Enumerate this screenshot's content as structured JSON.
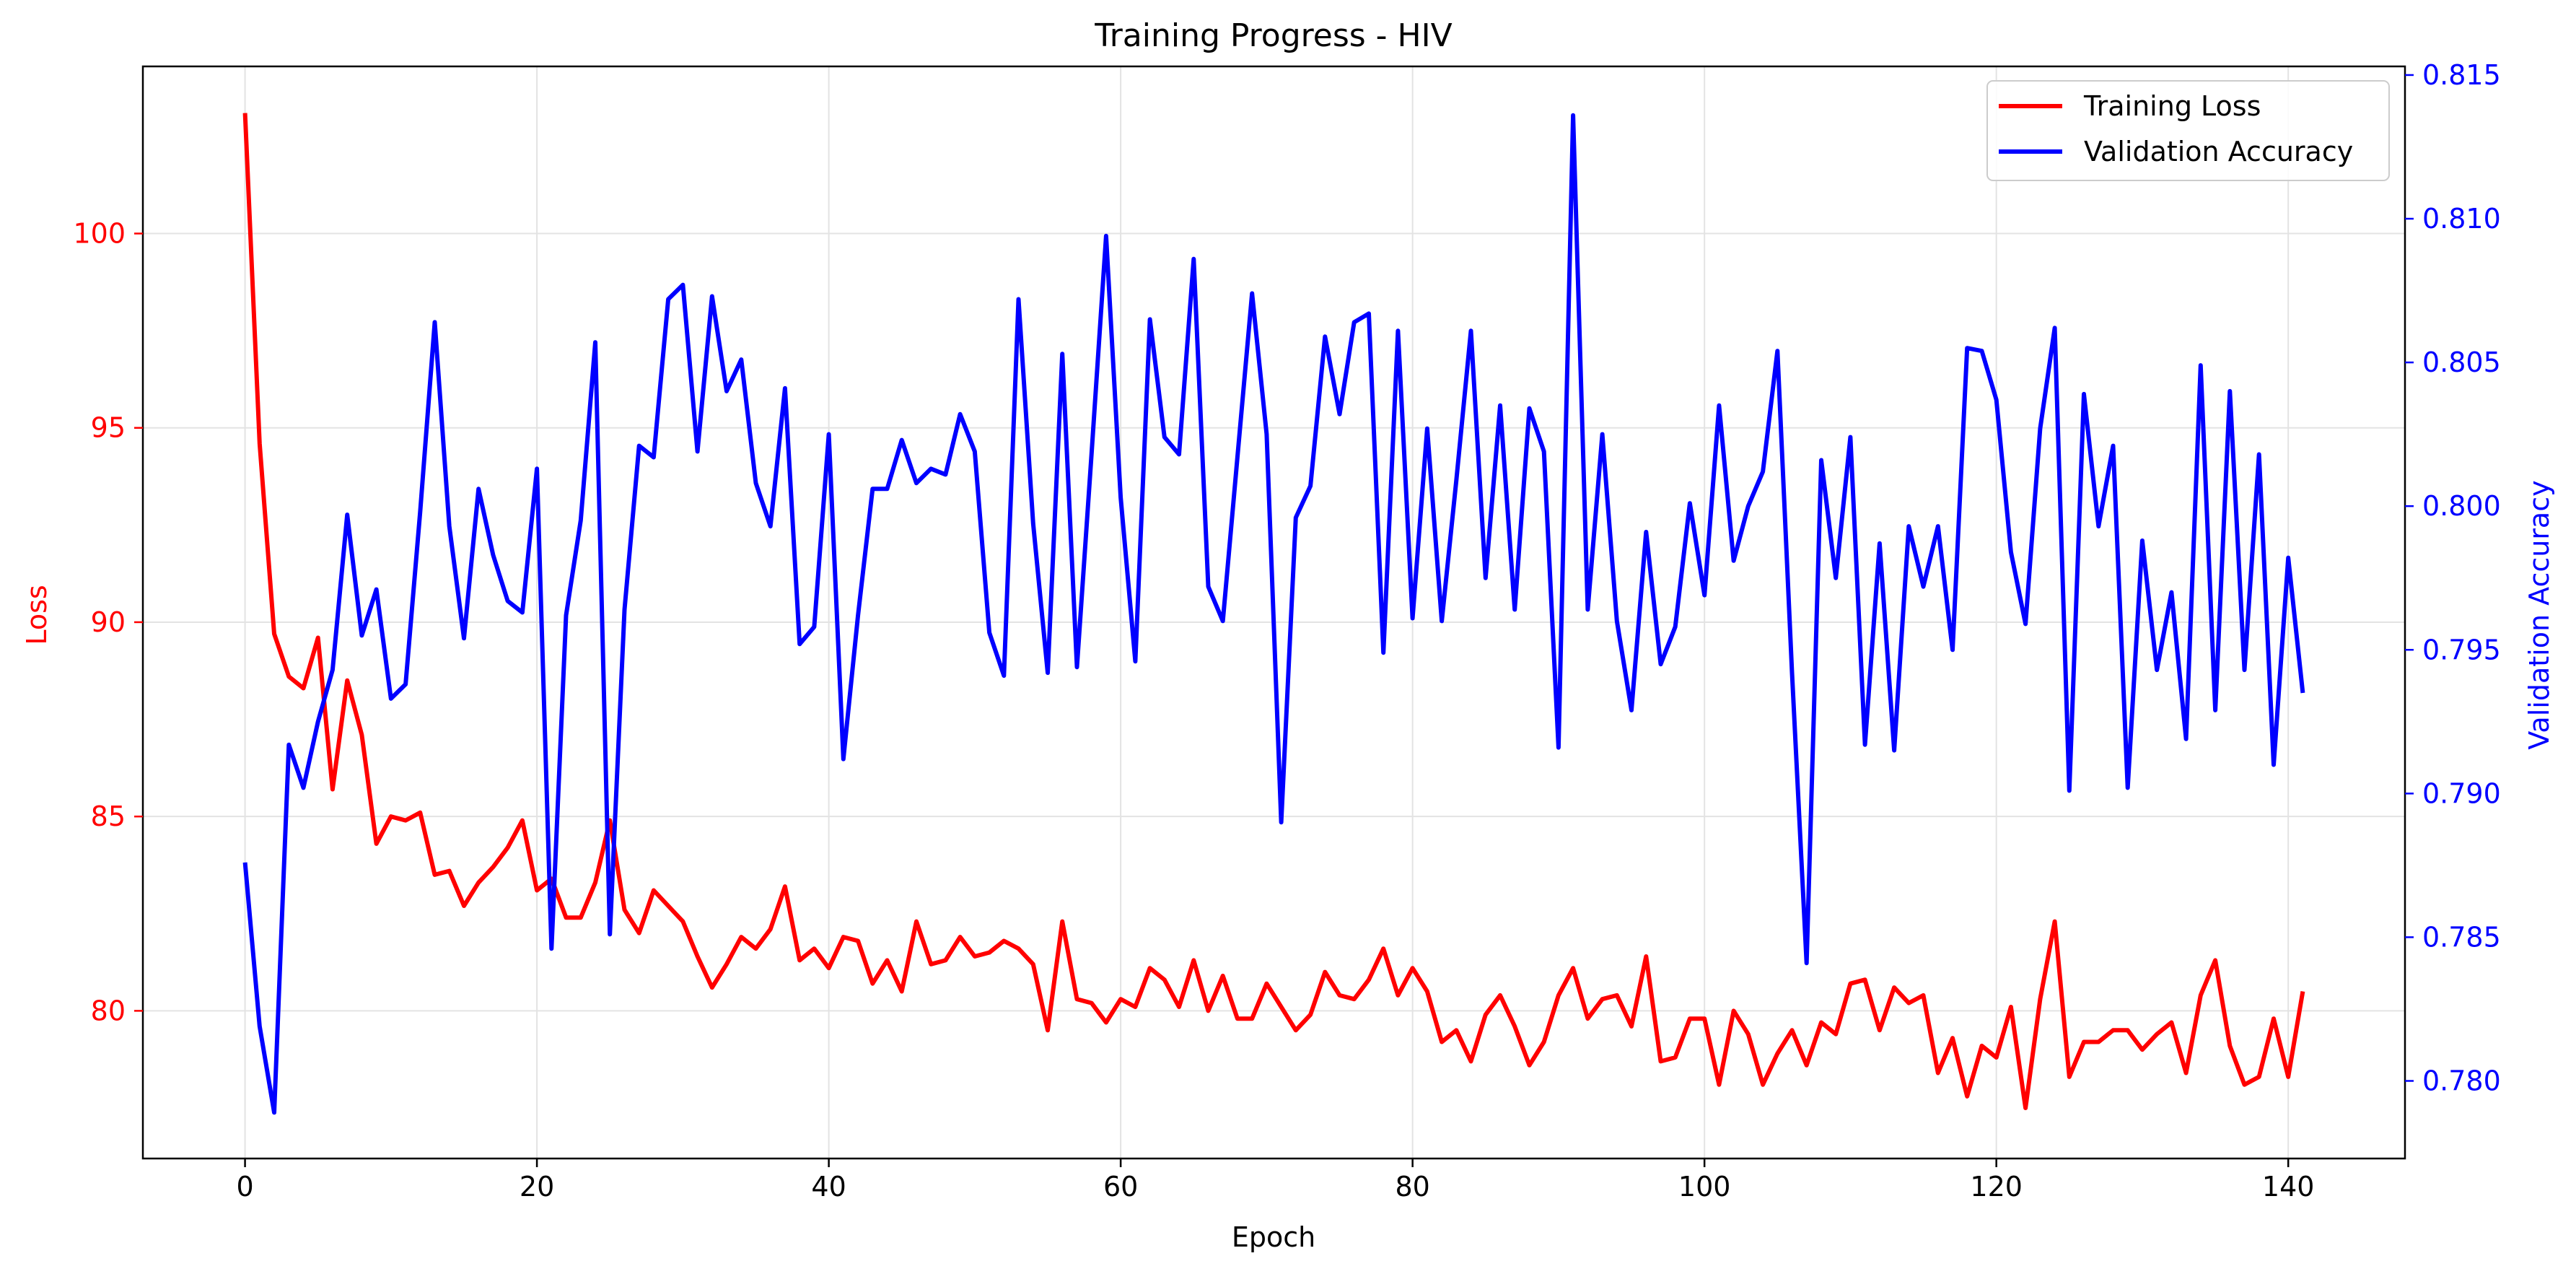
{
  "chart_data": {
    "type": "line",
    "title": "Training Progress - HIV",
    "xlabel": "Epoch",
    "ylabel_left": "Loss",
    "ylabel_right": "Validation Accuracy",
    "xlim": [
      -7,
      148
    ],
    "ylim_left": [
      76.2,
      104.3
    ],
    "ylim_right": [
      0.7773,
      0.8153
    ],
    "xticks": [
      0,
      20,
      40,
      60,
      80,
      100,
      120,
      140
    ],
    "yticks_left": [
      80,
      85,
      90,
      95,
      100
    ],
    "yticks_right": [
      0.78,
      0.785,
      0.79,
      0.795,
      0.8,
      0.805,
      0.81,
      0.815
    ],
    "ytick_labels_right": [
      "0.780",
      "0.785",
      "0.790",
      "0.795",
      "0.800",
      "0.805",
      "0.810",
      "0.815"
    ],
    "grid": true,
    "legend_position": "top-right",
    "colors": {
      "loss": "#ff0000",
      "accuracy": "#0000ff"
    },
    "series": [
      {
        "name": "Training Loss",
        "axis": "left",
        "color": "#ff0000",
        "values": [
          103.1,
          94.6,
          89.7,
          88.6,
          88.3,
          89.6,
          85.7,
          88.5,
          87.1,
          84.3,
          85.0,
          84.9,
          85.1,
          83.5,
          83.6,
          82.7,
          83.3,
          83.7,
          84.2,
          84.9,
          83.1,
          83.4,
          82.4,
          82.4,
          83.3,
          84.9,
          82.6,
          82.0,
          83.1,
          82.7,
          82.3,
          81.4,
          80.6,
          81.2,
          81.9,
          81.6,
          82.1,
          83.2,
          81.3,
          81.6,
          81.1,
          81.9,
          81.8,
          80.7,
          81.3,
          80.5,
          82.3,
          81.2,
          81.3,
          81.9,
          81.4,
          81.5,
          81.8,
          81.6,
          81.2,
          79.5,
          82.3,
          80.3,
          80.2,
          79.7,
          80.3,
          80.1,
          81.1,
          80.8,
          80.1,
          81.3,
          80.0,
          80.9,
          79.8,
          79.8,
          80.7,
          80.1,
          79.5,
          79.9,
          81.0,
          80.4,
          80.3,
          80.8,
          81.6,
          80.4,
          81.1,
          80.5,
          79.2,
          79.5,
          78.7,
          79.9,
          80.4,
          79.6,
          78.6,
          79.2,
          80.4,
          81.1,
          79.8,
          80.3,
          80.4,
          79.6,
          81.4,
          78.7,
          78.8,
          79.8,
          79.8,
          78.1,
          80.0,
          79.4,
          78.1,
          78.9,
          79.5,
          78.6,
          79.7,
          79.4,
          80.7,
          80.8,
          79.5,
          80.6,
          80.2,
          80.4,
          78.4,
          79.3,
          77.8,
          79.1,
          78.8,
          80.1,
          77.5,
          80.3,
          82.3,
          78.3,
          79.2,
          79.2,
          79.5,
          79.5,
          79.0,
          79.4,
          79.7,
          78.4,
          80.4,
          81.3,
          79.1,
          78.1,
          78.3,
          79.8,
          78.3,
          80.5
        ]
      },
      {
        "name": "Validation Accuracy",
        "axis": "right",
        "color": "#0000ff",
        "values": [
          0.7876,
          0.7819,
          0.7789,
          0.7917,
          0.7902,
          0.7925,
          0.7943,
          0.7997,
          0.7955,
          0.7971,
          0.7933,
          0.7938,
          0.7998,
          0.8064,
          0.7993,
          0.7954,
          0.8006,
          0.7983,
          0.7967,
          0.7963,
          0.8013,
          0.7846,
          0.7962,
          0.7995,
          0.8057,
          0.7851,
          0.7964,
          0.8021,
          0.8017,
          0.8072,
          0.8077,
          0.8019,
          0.8073,
          0.804,
          0.8051,
          0.8008,
          0.7993,
          0.8041,
          0.7952,
          0.7958,
          0.8025,
          0.7912,
          0.7962,
          0.8006,
          0.8006,
          0.8023,
          0.8008,
          0.8013,
          0.8011,
          0.8032,
          0.8019,
          0.7956,
          0.7941,
          0.8072,
          0.7994,
          0.7942,
          0.8053,
          0.7944,
          0.8018,
          0.8094,
          0.8003,
          0.7946,
          0.8065,
          0.8024,
          0.8018,
          0.8086,
          0.7972,
          0.796,
          0.8017,
          0.8074,
          0.8025,
          0.789,
          0.7996,
          0.8007,
          0.8059,
          0.8032,
          0.8064,
          0.8067,
          0.7949,
          0.8061,
          0.7961,
          0.8027,
          0.796,
          0.8009,
          0.8061,
          0.7975,
          0.8035,
          0.7964,
          0.8034,
          0.8019,
          0.7916,
          0.8136,
          0.7964,
          0.8025,
          0.796,
          0.7929,
          0.7991,
          0.7945,
          0.7958,
          0.8001,
          0.7969,
          0.8035,
          0.7981,
          0.8,
          0.8012,
          0.8054,
          0.7942,
          0.7841,
          0.8016,
          0.7975,
          0.8024,
          0.7917,
          0.7987,
          0.7915,
          0.7993,
          0.7972,
          0.7993,
          0.795,
          0.8055,
          0.8054,
          0.8037,
          0.7984,
          0.7959,
          0.8027,
          0.8062,
          0.7901,
          0.8039,
          0.7993,
          0.8021,
          0.7902,
          0.7988,
          0.7943,
          0.797,
          0.7919,
          0.8049,
          0.7929,
          0.804,
          0.7943,
          0.8018,
          0.791,
          0.7982,
          0.7935
        ]
      }
    ]
  }
}
